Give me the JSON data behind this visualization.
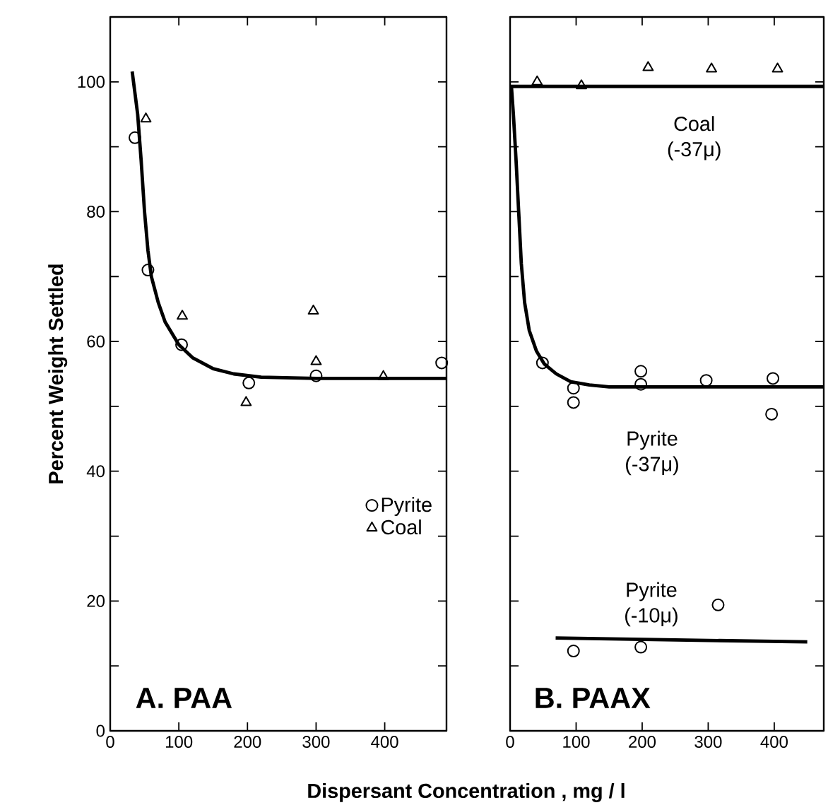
{
  "chart_data": [
    {
      "type": "scatter",
      "ylabel": "Percent Weight Settled",
      "xlabel": "Dispersant Concentration , mg / l",
      "annotations": [
        "A. PAA"
      ],
      "xlim": [
        0,
        490
      ],
      "ylim": [
        0,
        110
      ],
      "xticks": [
        0,
        100,
        200,
        300,
        400
      ],
      "yticks": [
        0,
        {
          "value": 10,
          "label": null
        },
        20,
        {
          "value": 30,
          "label": null
        },
        40,
        {
          "value": 50,
          "label": null
        },
        60,
        {
          "value": 70,
          "label": null
        },
        80,
        {
          "value": 90,
          "label": null
        },
        100
      ],
      "grid": false,
      "legend": "right",
      "series": [
        {
          "name": "Pyrite",
          "color": "#000000",
          "marker": "circle",
          "x": [
            36,
            55,
            104,
            202,
            300,
            483
          ],
          "values": [
            91.4,
            71,
            59.5,
            53.6,
            54.7,
            56.7
          ]
        },
        {
          "name": "Coal",
          "color": "#000000",
          "marker": "triangle",
          "x": [
            52,
            105,
            198,
            296,
            300,
            398
          ],
          "values": [
            94.3,
            63.9,
            50.6,
            64.7,
            56.9,
            54.6
          ]
        },
        {
          "type": "line",
          "color": "#000000",
          "marker": "none",
          "x": [
            32,
            40,
            45,
            50,
            55,
            60,
            70,
            80,
            100,
            120,
            150,
            180,
            220,
            300,
            490
          ],
          "values": [
            101.6,
            95,
            88,
            80,
            74,
            70,
            66,
            63,
            59.5,
            57.5,
            55.8,
            55,
            54.5,
            54.3,
            54.3
          ]
        }
      ]
    },
    {
      "type": "scatter",
      "annotations": [
        "B. PAAX"
      ],
      "tick_labels": "x",
      "xlim": [
        0,
        475
      ],
      "ylim": [
        0,
        110
      ],
      "xticks": [
        0,
        100,
        200,
        300,
        400
      ],
      "yticks": [
        0,
        {
          "value": 10,
          "label": null
        },
        20,
        {
          "value": 30,
          "label": null
        },
        40,
        {
          "value": 50,
          "label": null
        },
        60,
        {
          "value": 70,
          "label": null
        },
        80,
        {
          "value": 90,
          "label": null
        },
        100
      ],
      "grid": false,
      "legend": false,
      "series": [
        {
          "name": "Coal (-37μ)",
          "color": "#000000",
          "marker": "triangle",
          "x": [
            41,
            108,
            209,
            305,
            405
          ],
          "values": [
            100,
            99.4,
            102.2,
            102,
            102
          ]
        },
        {
          "type": "line",
          "color": "#000000",
          "marker": "none",
          "x": [
            0,
            475
          ],
          "values": [
            99.3,
            99.3
          ]
        },
        {
          "name": "Pyrite (-37μ)",
          "color": "#000000",
          "marker": "circle",
          "x": [
            49,
            96,
            96,
            198,
            198,
            297,
            398,
            396
          ],
          "values": [
            56.7,
            52.8,
            50.6,
            55.4,
            53.4,
            54,
            54.3,
            48.8
          ]
        },
        {
          "type": "line",
          "color": "#000000",
          "marker": "none",
          "x": [
            2,
            5,
            9,
            13,
            17,
            22,
            29,
            40,
            52,
            70,
            92,
            120,
            150,
            200,
            475
          ],
          "values": [
            99.3,
            95,
            88,
            80,
            72,
            66,
            61.7,
            58.5,
            56.5,
            55,
            53.8,
            53.3,
            53,
            53,
            53
          ]
        },
        {
          "name": "Pyrite (-10μ)",
          "color": "#000000",
          "marker": "circle",
          "x": [
            96,
            198,
            315
          ],
          "values": [
            12.3,
            12.9,
            19.4
          ]
        },
        {
          "type": "line",
          "color": "#000000",
          "marker": "none",
          "x": [
            69,
            450
          ],
          "values": [
            14.3,
            13.7
          ]
        }
      ]
    }
  ]
}
